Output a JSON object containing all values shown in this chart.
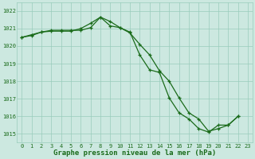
{
  "line1_x": [
    0,
    1,
    2,
    3,
    4,
    5,
    6,
    7,
    8,
    9,
    10,
    11,
    12,
    13,
    14,
    15,
    16,
    17,
    18,
    19,
    20,
    21,
    22
  ],
  "line1_y": [
    1020.5,
    1020.6,
    1020.8,
    1020.85,
    1020.85,
    1020.85,
    1021.0,
    1021.3,
    1021.65,
    1021.4,
    1021.05,
    1020.8,
    1019.5,
    1018.65,
    1018.5,
    1017.05,
    1016.2,
    1015.85,
    1015.3,
    1015.1,
    1015.5,
    1015.5,
    1016.0
  ],
  "line2_x": [
    0,
    1,
    2,
    3,
    4,
    5,
    6,
    7,
    8,
    9,
    10,
    11,
    12,
    13,
    14,
    15,
    16,
    17,
    18,
    19,
    20,
    21,
    22
  ],
  "line2_y": [
    1020.5,
    1020.65,
    1020.8,
    1020.9,
    1020.9,
    1020.9,
    1020.9,
    1021.05,
    1021.65,
    1021.15,
    1021.05,
    1020.75,
    1020.1,
    1019.5,
    1018.6,
    1018.0,
    1017.05,
    1016.2,
    1015.85,
    1015.15,
    1015.3,
    1015.5,
    1016.0
  ],
  "line_color": "#1a6b1a",
  "bg_color": "#cce8e0",
  "grid_color": "#99ccbb",
  "xlabel": "Graphe pression niveau de la mer (hPa)",
  "ylim": [
    1014.5,
    1022.5
  ],
  "xlim": [
    -0.5,
    23.5
  ],
  "yticks": [
    1015,
    1016,
    1017,
    1018,
    1019,
    1020,
    1021,
    1022
  ],
  "xticks": [
    0,
    1,
    2,
    3,
    4,
    5,
    6,
    7,
    8,
    9,
    10,
    11,
    12,
    13,
    14,
    15,
    16,
    17,
    18,
    19,
    20,
    21,
    22,
    23
  ],
  "tick_fontsize": 5.0,
  "xlabel_fontsize": 6.5,
  "linewidth": 0.9,
  "markersize": 3.0
}
